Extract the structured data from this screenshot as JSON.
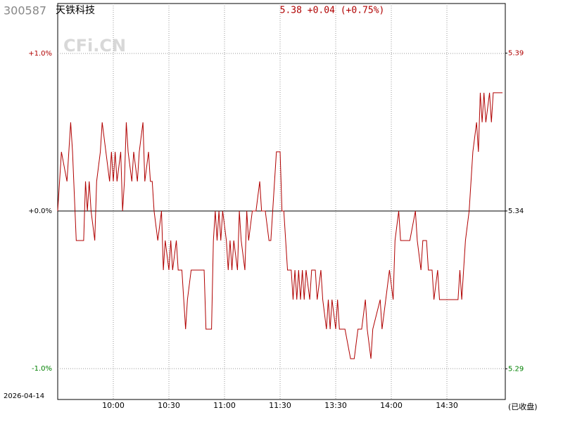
{
  "chart_data": {
    "type": "line",
    "code": "300587",
    "name": "天铁科技",
    "quote": "5.38 +0.04 (+0.75%)",
    "watermark": "CFi.CN",
    "date": "2026-04-14",
    "status": "(已收盘)",
    "xlim": [
      0,
      241.5
    ],
    "xticks": [
      {
        "value": 30,
        "label": "10:00"
      },
      {
        "value": 60,
        "label": "10:30"
      },
      {
        "value": 90,
        "label": "11:00"
      },
      {
        "value": 120,
        "label": "11:30"
      },
      {
        "value": 150,
        "label": "13:30"
      },
      {
        "value": 180,
        "label": "14:00"
      },
      {
        "value": 210,
        "label": "14:30"
      }
    ],
    "ylim": [
      -1.196,
      1.317
    ],
    "yticks": [
      {
        "value": 1,
        "label": "+1.0%"
      },
      {
        "value": 0,
        "label": "+0.0%"
      },
      {
        "value": -1,
        "label": "-1.0%"
      }
    ],
    "y2lim": [
      5.2762,
      5.4102
    ],
    "y2ticks": [
      {
        "value": 5.3934,
        "label": "5.39"
      },
      5.34,
      {
        "value": 5.2866,
        "label": "5.29"
      }
    ],
    "up_color": "#b00000",
    "down_color": "#008000",
    "zero_color": "#000000",
    "grid": true,
    "x": [
      0,
      2,
      5,
      7,
      8,
      10,
      14,
      15,
      16,
      17,
      18,
      20,
      21,
      23,
      24,
      26,
      28,
      29,
      30,
      31,
      32,
      34,
      35,
      36,
      37,
      38,
      40,
      41,
      43,
      44,
      46,
      47,
      49,
      50,
      51,
      52,
      54,
      56,
      57,
      58,
      60,
      61,
      62,
      64,
      65,
      67,
      68,
      69,
      70,
      72,
      79,
      80,
      83,
      84,
      85,
      86,
      87,
      88,
      89,
      91,
      92,
      93,
      94,
      95,
      97,
      98,
      99,
      101,
      102,
      103,
      105,
      107,
      109,
      110,
      112,
      114,
      115,
      117,
      118,
      120,
      121,
      122,
      124,
      126,
      127,
      128,
      129,
      130,
      131,
      132,
      133,
      134,
      136,
      137,
      139,
      140,
      142,
      143,
      145,
      146,
      147,
      148,
      150,
      151,
      152,
      153,
      155,
      158,
      160,
      162,
      164,
      166,
      167,
      169,
      170,
      174,
      175,
      177,
      179,
      181,
      182,
      184,
      185,
      187,
      190,
      193,
      194,
      196,
      197,
      199,
      200,
      202,
      203,
      205,
      206,
      207,
      212,
      216,
      217,
      218,
      219,
      220,
      222,
      223,
      224,
      226,
      227,
      228,
      229,
      230,
      231,
      233,
      234,
      235,
      240
    ],
    "series": [
      {
        "color": "#b00000",
        "axis": "y2",
        "values": [
          5.34,
          5.36,
          5.35,
          5.37,
          5.36,
          5.33,
          5.33,
          5.35,
          5.34,
          5.35,
          5.34,
          5.33,
          5.35,
          5.36,
          5.37,
          5.36,
          5.35,
          5.36,
          5.35,
          5.36,
          5.35,
          5.36,
          5.34,
          5.35,
          5.37,
          5.36,
          5.35,
          5.36,
          5.35,
          5.36,
          5.37,
          5.35,
          5.36,
          5.35,
          5.35,
          5.34,
          5.33,
          5.34,
          5.32,
          5.33,
          5.32,
          5.33,
          5.32,
          5.33,
          5.32,
          5.32,
          5.31,
          5.3,
          5.31,
          5.32,
          5.32,
          5.3,
          5.3,
          5.33,
          5.34,
          5.33,
          5.34,
          5.33,
          5.34,
          5.33,
          5.32,
          5.33,
          5.32,
          5.33,
          5.32,
          5.34,
          5.33,
          5.32,
          5.34,
          5.33,
          5.34,
          5.34,
          5.35,
          5.34,
          5.34,
          5.33,
          5.33,
          5.35,
          5.36,
          5.36,
          5.34,
          5.34,
          5.32,
          5.32,
          5.31,
          5.32,
          5.31,
          5.32,
          5.31,
          5.32,
          5.31,
          5.32,
          5.31,
          5.32,
          5.32,
          5.31,
          5.32,
          5.31,
          5.3,
          5.31,
          5.3,
          5.31,
          5.3,
          5.31,
          5.3,
          5.3,
          5.3,
          5.29,
          5.29,
          5.3,
          5.3,
          5.31,
          5.3,
          5.29,
          5.3,
          5.31,
          5.3,
          5.31,
          5.32,
          5.31,
          5.33,
          5.34,
          5.33,
          5.33,
          5.33,
          5.34,
          5.33,
          5.32,
          5.33,
          5.33,
          5.32,
          5.32,
          5.31,
          5.32,
          5.31,
          5.31,
          5.31,
          5.31,
          5.32,
          5.31,
          5.32,
          5.33,
          5.34,
          5.35,
          5.36,
          5.37,
          5.36,
          5.38,
          5.37,
          5.38,
          5.37,
          5.38,
          5.37,
          5.38,
          5.38
        ]
      }
    ]
  }
}
